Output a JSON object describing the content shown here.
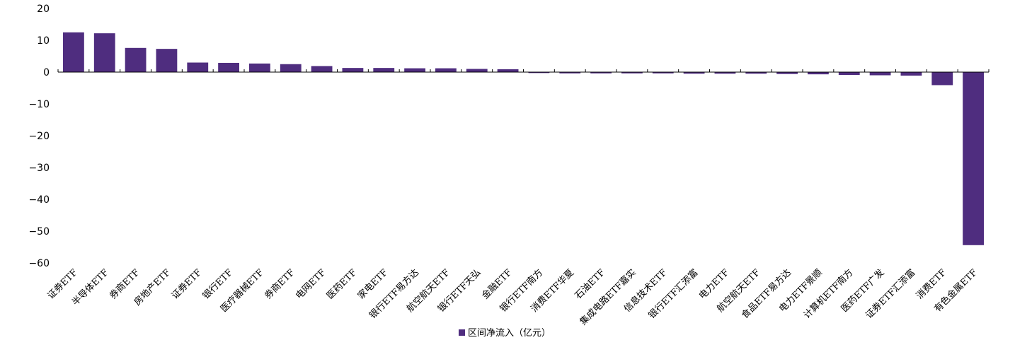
{
  "chart_data": {
    "type": "bar",
    "title": "",
    "xlabel": "",
    "ylabel": "",
    "ylim": [
      -60,
      20
    ],
    "yticks": [
      20,
      10,
      0,
      -10,
      -20,
      -30,
      -40,
      -50,
      -60
    ],
    "ytick_labels": [
      "20",
      "10",
      "0",
      "−10",
      "−20",
      "−30",
      "−40",
      "−50",
      "−60"
    ],
    "grid": false,
    "legend_position": "bottom-center",
    "bar_color": "#4F2D7F",
    "categories": [
      "证券ETF",
      "半导体ETF",
      "券商ETF",
      "房地产ETF",
      "证券ETF",
      "银行ETF",
      "医疗器械ETF",
      "券商ETF",
      "电网ETF",
      "医药ETF",
      "家电ETF",
      "银行ETF易方达",
      "航空航天ETF",
      "银行ETF天弘",
      "金融ETF",
      "银行ETF南方",
      "消费ETF华夏",
      "石油ETF",
      "集成电路ETF嘉实",
      "信息技术ETF",
      "银行ETF汇添富",
      "电力ETF",
      "航空航天ETF",
      "食品ETF易方达",
      "电力ETF景顺",
      "计算机ETF南方",
      "医药ETF广发",
      "证券ETF汇添富",
      "消费ETF",
      "有色金属ETF"
    ],
    "series": [
      {
        "name": "区间净流入（亿元）",
        "values": [
          12.5,
          12.2,
          7.6,
          7.3,
          3.0,
          2.9,
          2.7,
          2.5,
          1.9,
          1.3,
          1.3,
          1.2,
          1.2,
          1.0,
          0.9,
          -0.3,
          -0.4,
          -0.4,
          -0.4,
          -0.4,
          -0.5,
          -0.5,
          -0.5,
          -0.6,
          -0.7,
          -0.9,
          -1.0,
          -1.1,
          -4.1,
          -54.4
        ]
      }
    ]
  }
}
